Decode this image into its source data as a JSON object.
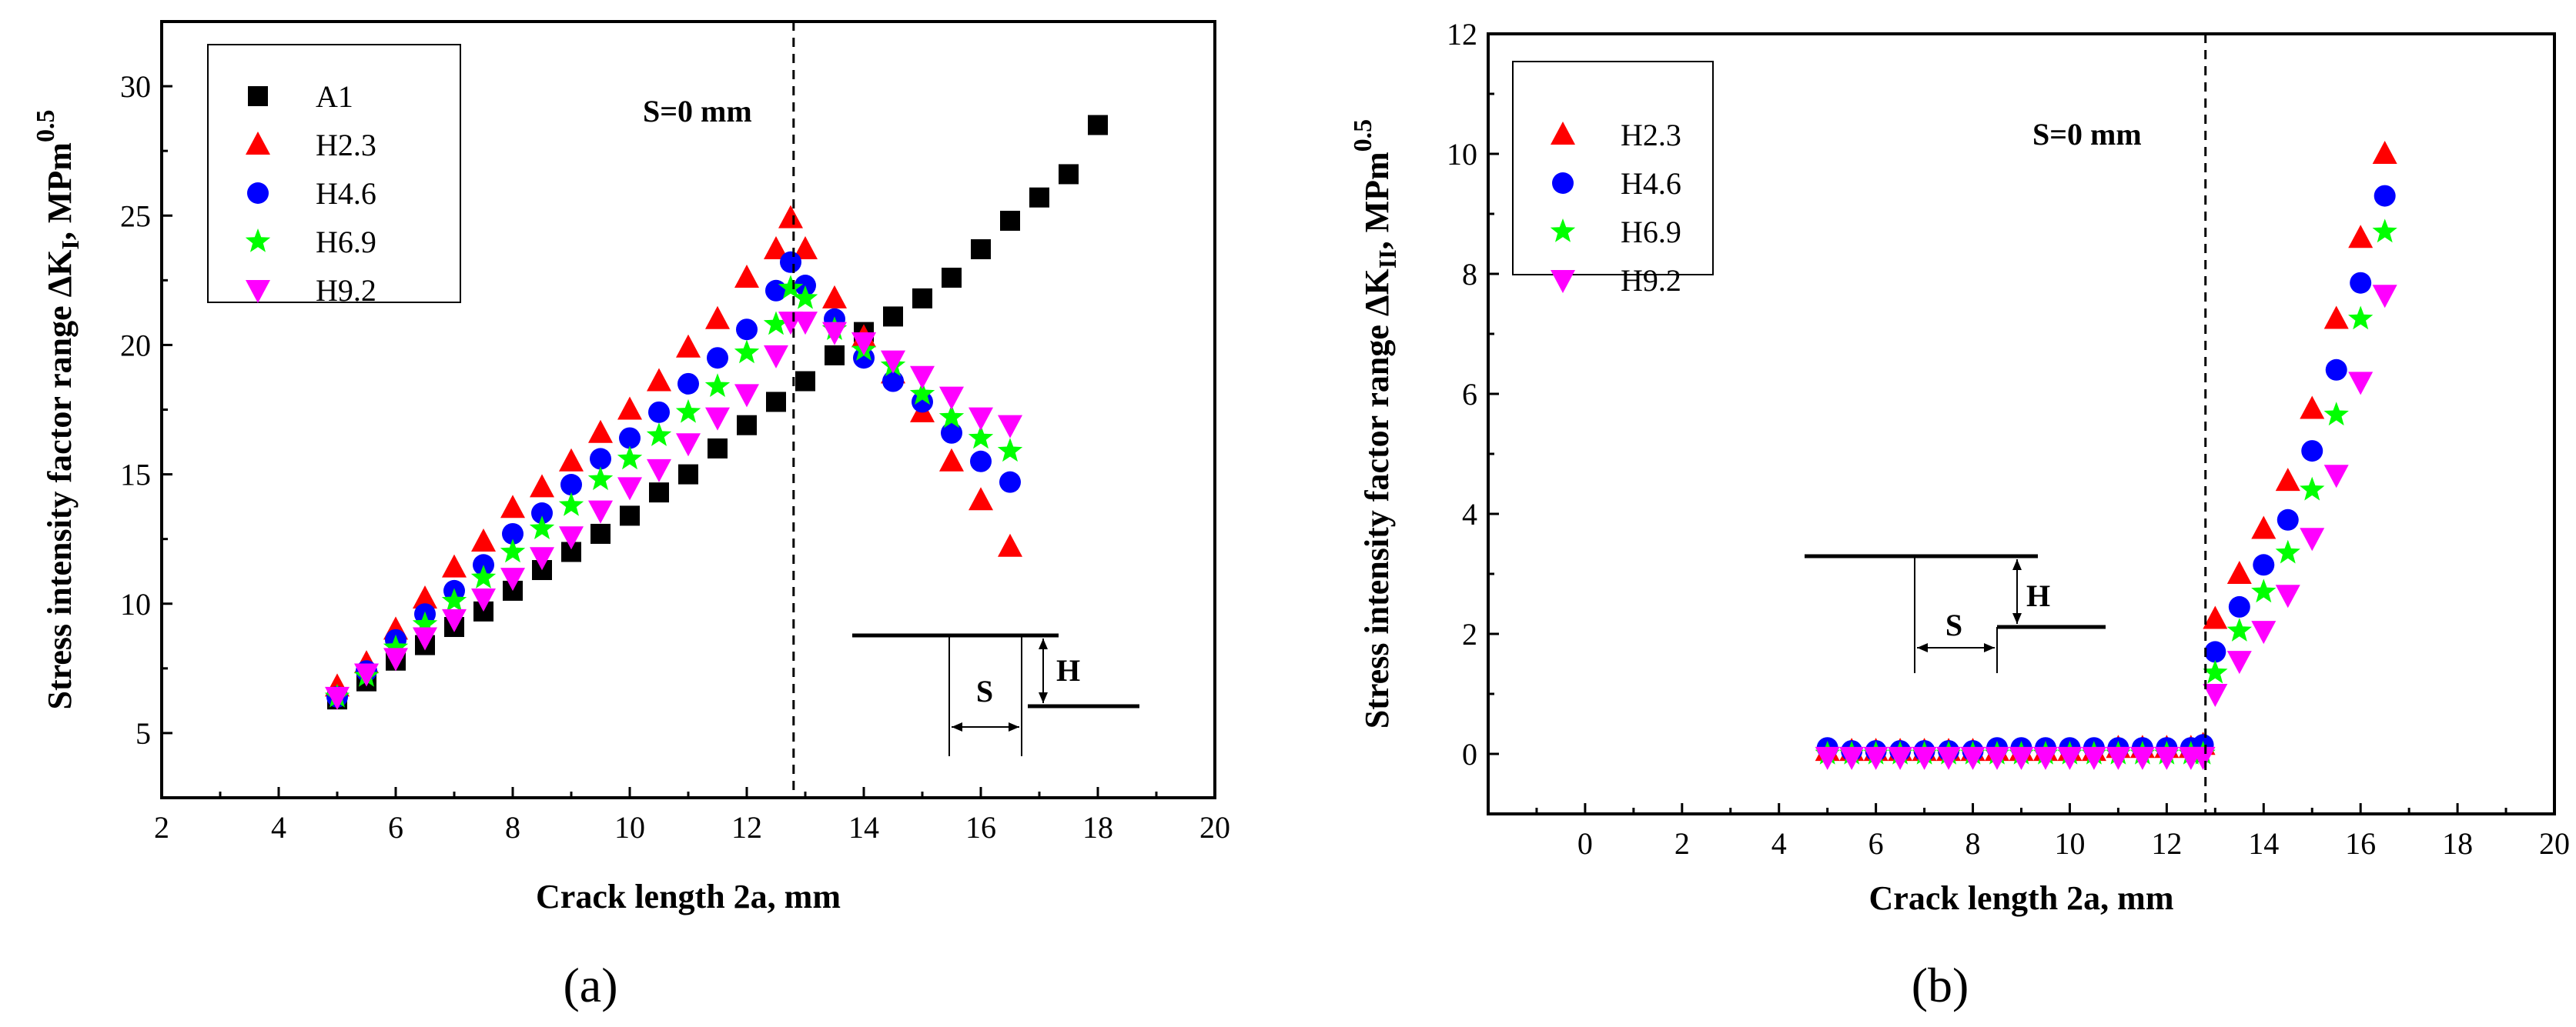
{
  "chart_data": [
    {
      "panel_label": "(a)",
      "type": "scatter",
      "xlabel": "Crack length 2a, mm",
      "ylabel_prefix": "Stress intensity factor range ΔK",
      "ylabel_subscript": "I",
      "ylabel_unit": ", MPm",
      "ylabel_superscript": "0.5",
      "xlim": [
        2,
        20
      ],
      "ylim": [
        2.5,
        32.5
      ],
      "xticks": [
        2,
        4,
        6,
        8,
        10,
        12,
        14,
        16,
        18,
        20
      ],
      "yticks": [
        5,
        10,
        15,
        20,
        25,
        30
      ],
      "vline": 12.8,
      "annotation": "S=0 mm",
      "legend_position": "top-left",
      "inset_labels": {
        "s": "S",
        "h": "H"
      },
      "series": [
        {
          "name": "A1",
          "marker": "square",
          "color": "#000000",
          "x": [
            5,
            5.5,
            6,
            6.5,
            7,
            7.5,
            8,
            8.5,
            9,
            9.5,
            10,
            10.5,
            11,
            11.5,
            12,
            12.5,
            13,
            13.5,
            14,
            14.5,
            15,
            15.5,
            16,
            16.5,
            17,
            17.5,
            18
          ],
          "y": [
            6.3,
            7.0,
            7.8,
            8.4,
            9.1,
            9.7,
            10.5,
            11.3,
            12.0,
            12.7,
            13.4,
            14.3,
            15.0,
            16.0,
            16.9,
            17.8,
            18.6,
            19.6,
            20.5,
            21.1,
            21.8,
            22.6,
            23.7,
            24.8,
            25.7,
            26.6,
            28.5
          ]
        },
        {
          "name": "H2.3",
          "marker": "triangle-up",
          "color": "#ff0000",
          "x": [
            5,
            5.5,
            6,
            6.5,
            7,
            7.5,
            8,
            8.5,
            9,
            9.5,
            10,
            10.5,
            11,
            11.5,
            12,
            12.5,
            12.75,
            13,
            13.5,
            14,
            14.5,
            15,
            15.5,
            16,
            16.5
          ],
          "y": [
            6.8,
            7.7,
            9.0,
            10.2,
            11.4,
            12.4,
            13.7,
            14.5,
            15.5,
            16.6,
            17.5,
            18.6,
            19.9,
            21.0,
            22.6,
            23.7,
            24.9,
            23.7,
            21.8,
            20.3,
            18.9,
            17.4,
            15.5,
            14.0,
            12.2
          ]
        },
        {
          "name": "H4.6",
          "marker": "circle",
          "color": "#0000ff",
          "x": [
            5,
            5.5,
            6,
            6.5,
            7,
            7.5,
            8,
            8.5,
            9,
            9.5,
            10,
            10.5,
            11,
            11.5,
            12,
            12.5,
            12.75,
            13,
            13.5,
            14,
            14.5,
            15,
            15.5,
            16,
            16.5
          ],
          "y": [
            6.4,
            7.4,
            8.6,
            9.6,
            10.5,
            11.5,
            12.7,
            13.5,
            14.6,
            15.6,
            16.4,
            17.4,
            18.5,
            19.5,
            20.6,
            22.1,
            23.2,
            22.3,
            21.0,
            19.5,
            18.6,
            17.8,
            16.6,
            15.5,
            14.7
          ]
        },
        {
          "name": "H6.9",
          "marker": "star",
          "color": "#00ff00",
          "x": [
            5,
            5.5,
            6,
            6.5,
            7,
            7.5,
            8,
            8.5,
            9,
            9.5,
            10,
            10.5,
            11,
            11.5,
            12,
            12.5,
            12.75,
            13,
            13.5,
            14,
            14.5,
            15,
            15.5,
            16,
            16.5
          ],
          "y": [
            6.4,
            7.2,
            8.3,
            9.2,
            10.1,
            11.0,
            12.0,
            12.9,
            13.8,
            14.8,
            15.6,
            16.5,
            17.4,
            18.4,
            19.7,
            20.8,
            22.2,
            21.8,
            20.6,
            19.8,
            19.2,
            18.1,
            17.2,
            16.4,
            15.9
          ]
        },
        {
          "name": "H9.2",
          "marker": "triangle-down",
          "color": "#ff00ff",
          "x": [
            5,
            5.5,
            6,
            6.5,
            7,
            7.5,
            8,
            8.5,
            9,
            9.5,
            10,
            10.5,
            11,
            11.5,
            12,
            12.5,
            12.75,
            13,
            13.5,
            14,
            14.5,
            15,
            15.5,
            16,
            16.5
          ],
          "y": [
            6.4,
            7.3,
            7.9,
            8.7,
            9.4,
            10.2,
            11.0,
            11.8,
            12.6,
            13.6,
            14.5,
            15.2,
            16.2,
            17.2,
            18.1,
            19.6,
            20.9,
            20.9,
            20.5,
            20.1,
            19.4,
            18.8,
            18.0,
            17.2,
            16.9
          ]
        }
      ]
    },
    {
      "panel_label": "(b)",
      "type": "scatter",
      "xlabel": "Crack length 2a, mm",
      "ylabel_prefix": "Stress intensity factor range ΔK",
      "ylabel_subscript": "II",
      "ylabel_unit": ", MPm",
      "ylabel_superscript": "0.5",
      "xlim": [
        -2,
        20
      ],
      "ylim": [
        -1,
        12
      ],
      "xticks": [
        0,
        2,
        4,
        6,
        8,
        10,
        12,
        14,
        16,
        18,
        20
      ],
      "yticks": [
        0,
        2,
        4,
        6,
        8,
        10,
        12
      ],
      "vline": 12.8,
      "annotation": "S=0 mm",
      "legend_position": "top-left",
      "inset_labels": {
        "s": "S",
        "h": "H"
      },
      "series": [
        {
          "name": "H2.3",
          "marker": "triangle-up",
          "color": "#ff0000",
          "x": [
            5,
            5.5,
            6,
            6.5,
            7,
            7.5,
            8,
            8.5,
            9,
            9.5,
            10,
            10.5,
            11,
            11.5,
            12,
            12.5,
            12.75,
            13,
            13.5,
            14,
            14.5,
            15,
            15.5,
            16,
            16.5
          ],
          "y": [
            0.05,
            0.05,
            0.05,
            0.05,
            0.05,
            0.05,
            0.05,
            0.05,
            0.05,
            0.05,
            0.05,
            0.05,
            0.1,
            0.1,
            0.1,
            0.1,
            0.15,
            2.25,
            3.0,
            3.75,
            4.55,
            5.75,
            7.25,
            8.6,
            10.0
          ]
        },
        {
          "name": "H4.6",
          "marker": "circle",
          "color": "#0000ff",
          "x": [
            5,
            5.5,
            6,
            6.5,
            7,
            7.5,
            8,
            8.5,
            9,
            9.5,
            10,
            10.5,
            11,
            11.5,
            12,
            12.5,
            12.75,
            13,
            13.5,
            14,
            14.5,
            15,
            15.5,
            16,
            16.5
          ],
          "y": [
            0.1,
            0.05,
            0.05,
            0.05,
            0.05,
            0.05,
            0.05,
            0.1,
            0.1,
            0.1,
            0.1,
            0.1,
            0.1,
            0.1,
            0.1,
            0.1,
            0.15,
            1.7,
            2.45,
            3.15,
            3.9,
            5.05,
            6.4,
            7.85,
            9.3
          ]
        },
        {
          "name": "H6.9",
          "marker": "star",
          "color": "#00ff00",
          "x": [
            5,
            5.5,
            6,
            6.5,
            7,
            7.5,
            8,
            8.5,
            9,
            9.5,
            10,
            10.5,
            11,
            11.5,
            12,
            12.5,
            12.75,
            13,
            13.5,
            14,
            14.5,
            15,
            15.5,
            16,
            16.5
          ],
          "y": [
            0,
            0,
            0,
            0,
            0,
            0,
            0,
            0,
            0,
            0,
            0,
            0,
            0,
            0,
            0,
            0,
            0,
            1.35,
            2.05,
            2.7,
            3.35,
            4.4,
            5.65,
            7.25,
            8.7
          ]
        },
        {
          "name": "H9.2",
          "marker": "triangle-down",
          "color": "#ff00ff",
          "x": [
            5,
            5.5,
            6,
            6.5,
            7,
            7.5,
            8,
            8.5,
            9,
            9.5,
            10,
            10.5,
            11,
            11.5,
            12,
            12.5,
            12.75,
            13,
            13.5,
            14,
            14.5,
            15,
            15.5,
            16,
            16.5
          ],
          "y": [
            -0.05,
            -0.05,
            -0.05,
            -0.05,
            -0.05,
            -0.05,
            -0.05,
            -0.05,
            -0.05,
            -0.05,
            -0.05,
            -0.05,
            -0.05,
            -0.05,
            -0.05,
            -0.05,
            -0.05,
            1.0,
            1.55,
            2.05,
            2.65,
            3.6,
            4.65,
            6.2,
            7.65
          ]
        }
      ]
    }
  ]
}
